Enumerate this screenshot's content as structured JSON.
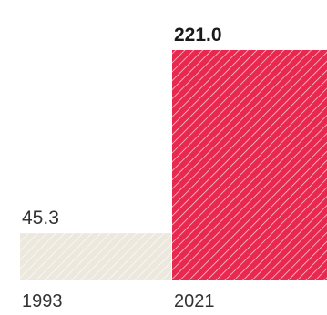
{
  "chart_data": {
    "type": "bar",
    "categories": [
      "1993",
      "2021"
    ],
    "values": [
      45.3,
      221.0
    ],
    "value_labels": [
      "45.3",
      "221.0"
    ],
    "colors": [
      "#ece8dd",
      "#e8284f"
    ],
    "highlight_index": 1,
    "ylim": [
      0,
      221.0
    ],
    "grid": false,
    "legend": "none"
  }
}
